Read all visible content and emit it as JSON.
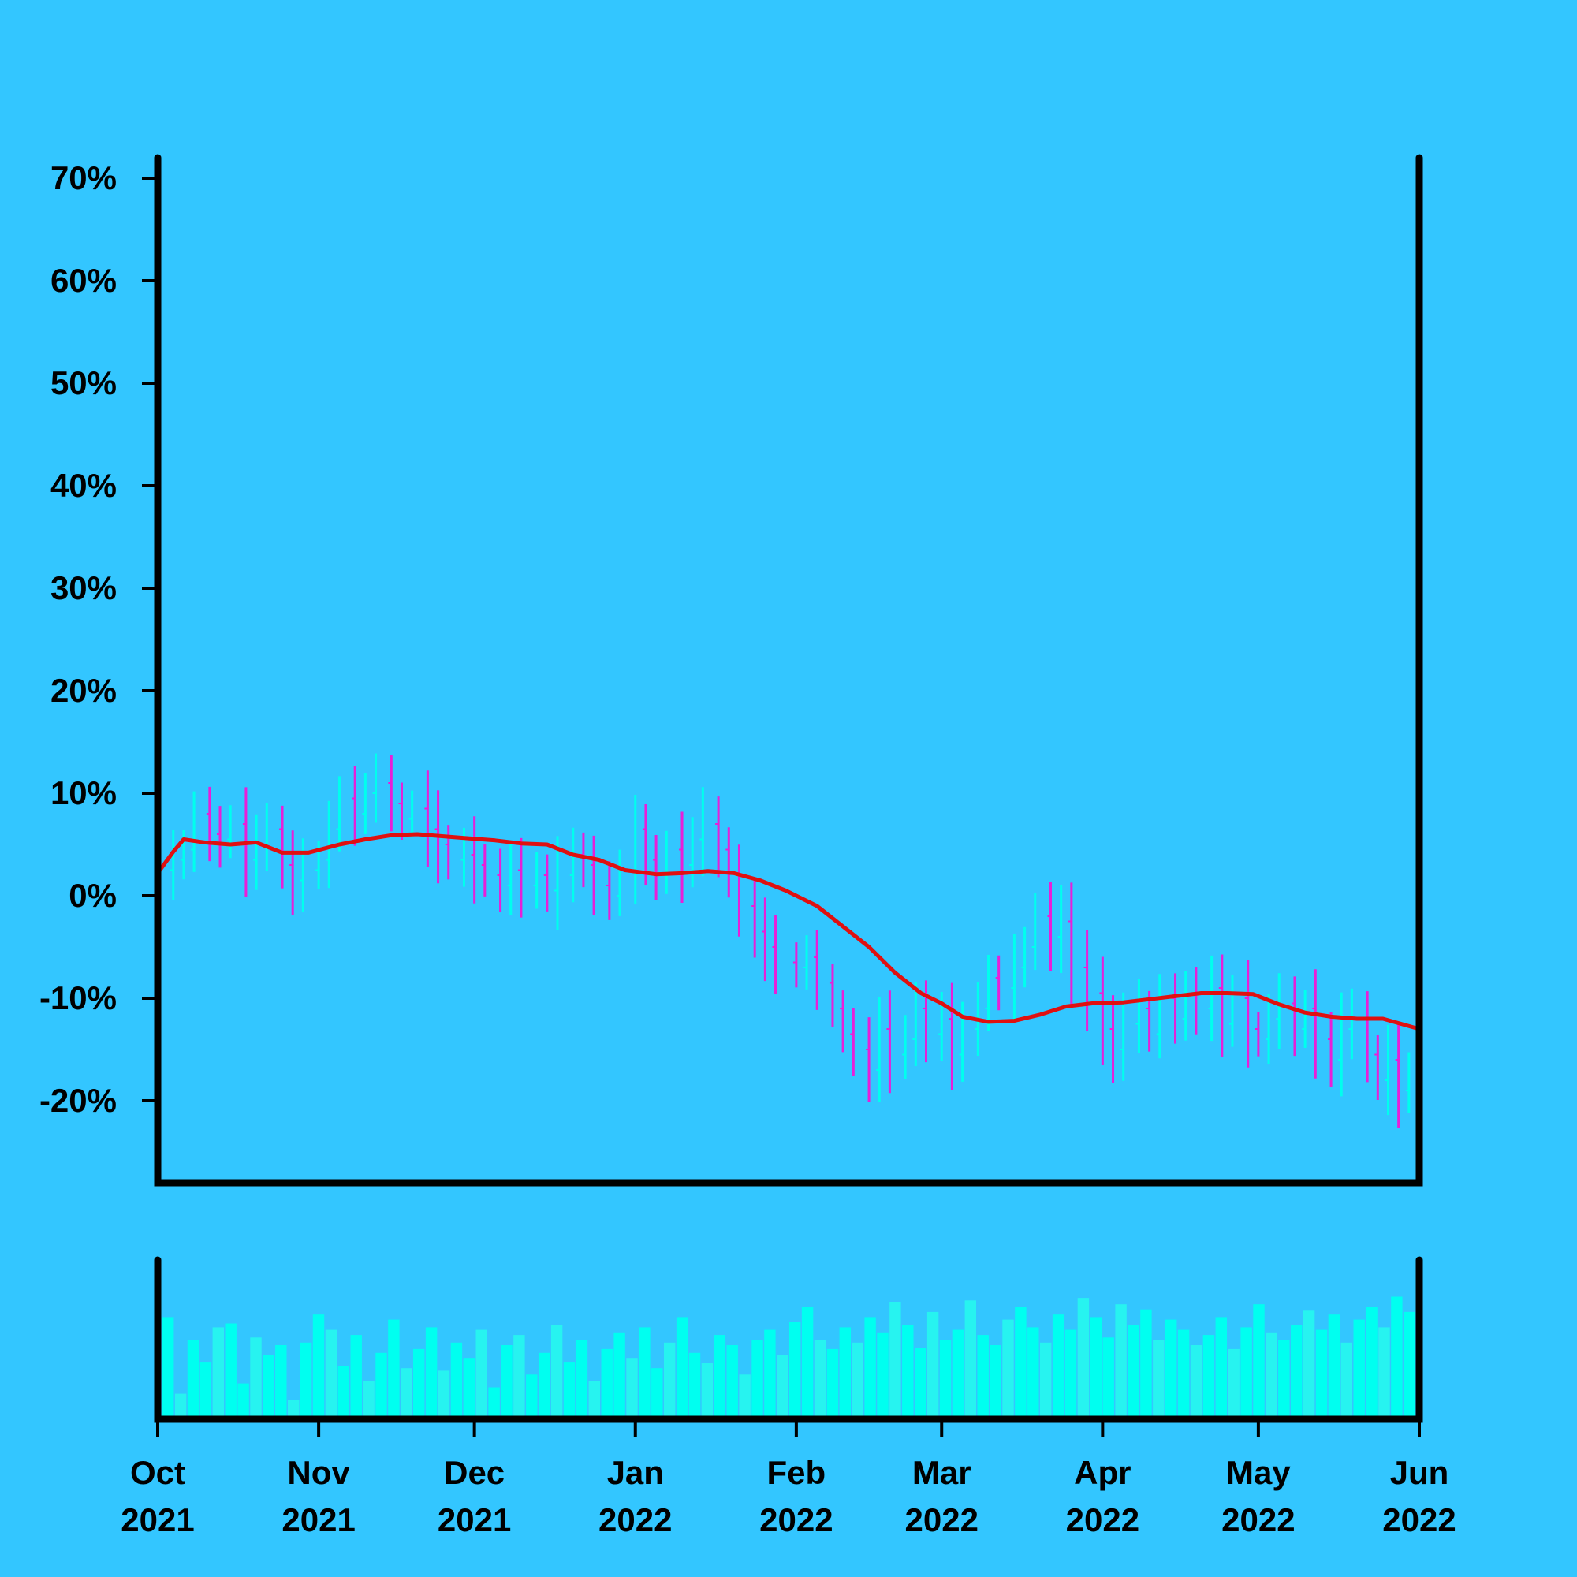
{
  "colors": {
    "background": "#33c6ff",
    "axis": "#000000",
    "up_bar": "#00ffee",
    "down_bar": "#e91ed8",
    "moving_average": "#e01010",
    "volume_bar": "#00fff0",
    "volume_bar_light": "#27f3f0"
  },
  "chart_data": [
    {
      "type": "ohlc",
      "title": "",
      "xlabel": "",
      "ylabel": "",
      "ylim": [
        -28,
        72
      ],
      "yticks": [
        -20,
        -10,
        0,
        10,
        20,
        30,
        40,
        50,
        60,
        70
      ],
      "ytick_labels": [
        "-20%",
        "-10%",
        "0%",
        "10%",
        "20%",
        "30%",
        "40%",
        "50%",
        "60%",
        "70%"
      ],
      "grid": false,
      "x_range": [
        "2021-10-01",
        "2022-06-01"
      ],
      "xticks": [
        {
          "date": "2021-10-01",
          "label": [
            "Oct",
            "2021"
          ]
        },
        {
          "date": "2021-11-01",
          "label": [
            "Nov",
            "2021"
          ]
        },
        {
          "date": "2021-12-01",
          "label": [
            "Dec",
            "2021"
          ]
        },
        {
          "date": "2022-01-01",
          "label": [
            "Jan",
            "2022"
          ]
        },
        {
          "date": "2022-02-01",
          "label": [
            "Feb",
            "2022"
          ]
        },
        {
          "date": "2022-03-01",
          "label": [
            "Mar",
            "2022"
          ]
        },
        {
          "date": "2022-04-01",
          "label": [
            "Apr",
            "2022"
          ]
        },
        {
          "date": "2022-05-01",
          "label": [
            "May",
            "2022"
          ]
        },
        {
          "date": "2022-06-01",
          "label": [
            "Jun",
            "2022"
          ]
        }
      ],
      "price_series": {
        "name": "",
        "points": [
          [
            "2021-10-01",
            2.5
          ],
          [
            "2021-10-04",
            3.5
          ],
          [
            "2021-10-06",
            4.5
          ],
          [
            "2021-10-08",
            8.0
          ],
          [
            "2021-10-11",
            6.0
          ],
          [
            "2021-10-13",
            5.5
          ],
          [
            "2021-10-15",
            7.0
          ],
          [
            "2021-10-18",
            3.5
          ],
          [
            "2021-10-20",
            5.0
          ],
          [
            "2021-10-22",
            6.5
          ],
          [
            "2021-10-25",
            3.0
          ],
          [
            "2021-10-27",
            1.5
          ],
          [
            "2021-10-29",
            2.5
          ],
          [
            "2021-11-01",
            3.5
          ],
          [
            "2021-11-03",
            6.5
          ],
          [
            "2021-11-05",
            9.5
          ],
          [
            "2021-11-08",
            8.0
          ],
          [
            "2021-11-10",
            10.0
          ],
          [
            "2021-11-12",
            11.0
          ],
          [
            "2021-11-15",
            9.0
          ],
          [
            "2021-11-17",
            7.5
          ],
          [
            "2021-11-19",
            8.5
          ],
          [
            "2021-11-22",
            6.5
          ],
          [
            "2021-11-24",
            5.0
          ],
          [
            "2021-11-26",
            3.5
          ],
          [
            "2021-11-29",
            4.0
          ],
          [
            "2021-12-01",
            3.0
          ],
          [
            "2021-12-03",
            2.0
          ],
          [
            "2021-12-06",
            1.0
          ],
          [
            "2021-12-08",
            2.5
          ],
          [
            "2021-12-10",
            1.0
          ],
          [
            "2021-12-13",
            2.0
          ],
          [
            "2021-12-15",
            0.5
          ],
          [
            "2021-12-17",
            2.0
          ],
          [
            "2021-12-20",
            4.0
          ],
          [
            "2021-12-22",
            3.0
          ],
          [
            "2021-12-24",
            1.0
          ],
          [
            "2021-12-27",
            0.0
          ],
          [
            "2021-12-29",
            2.5
          ],
          [
            "2022-01-01",
            6.5
          ],
          [
            "2022-01-03",
            3.5
          ],
          [
            "2022-01-05",
            2.0
          ],
          [
            "2022-01-07",
            4.5
          ],
          [
            "2022-01-10",
            3.0
          ],
          [
            "2022-01-12",
            5.5
          ],
          [
            "2022-01-14",
            7.0
          ],
          [
            "2022-01-17",
            4.5
          ],
          [
            "2022-01-19",
            2.0
          ],
          [
            "2022-01-21",
            -1.0
          ],
          [
            "2022-01-24",
            -3.5
          ],
          [
            "2022-01-26",
            -5.0
          ],
          [
            "2022-01-28",
            -6.5
          ],
          [
            "2022-02-01",
            -7.0
          ],
          [
            "2022-02-03",
            -6.0
          ],
          [
            "2022-02-05",
            -8.5
          ],
          [
            "2022-02-08",
            -11.0
          ],
          [
            "2022-02-10",
            -13.5
          ],
          [
            "2022-02-12",
            -15.0
          ],
          [
            "2022-02-15",
            -17.0
          ],
          [
            "2022-02-17",
            -13.0
          ],
          [
            "2022-02-19",
            -15.5
          ],
          [
            "2022-02-22",
            -14.0
          ],
          [
            "2022-02-24",
            -11.0
          ],
          [
            "2022-02-26",
            -13.5
          ],
          [
            "2022-03-01",
            -12.0
          ],
          [
            "2022-03-03",
            -15.5
          ],
          [
            "2022-03-05",
            -13.0
          ],
          [
            "2022-03-08",
            -11.0
          ],
          [
            "2022-03-10",
            -8.0
          ],
          [
            "2022-03-12",
            -9.0
          ],
          [
            "2022-03-15",
            -7.0
          ],
          [
            "2022-03-17",
            -5.0
          ],
          [
            "2022-03-19",
            -2.0
          ],
          [
            "2022-03-22",
            -4.0
          ],
          [
            "2022-03-24",
            -2.5
          ],
          [
            "2022-03-26",
            -7.0
          ],
          [
            "2022-03-29",
            -9.5
          ],
          [
            "2022-04-01",
            -13.0
          ],
          [
            "2022-04-03",
            -15.0
          ],
          [
            "2022-04-05",
            -12.5
          ],
          [
            "2022-04-08",
            -11.0
          ],
          [
            "2022-04-10",
            -13.5
          ],
          [
            "2022-04-12",
            -10.0
          ],
          [
            "2022-04-15",
            -12.0
          ],
          [
            "2022-04-17",
            -9.5
          ],
          [
            "2022-04-19",
            -11.0
          ],
          [
            "2022-04-22",
            -9.0
          ],
          [
            "2022-04-24",
            -12.5
          ],
          [
            "2022-04-26",
            -10.0
          ],
          [
            "2022-04-29",
            -13.0
          ],
          [
            "2022-05-01",
            -14.0
          ],
          [
            "2022-05-03",
            -12.0
          ],
          [
            "2022-05-05",
            -10.5
          ],
          [
            "2022-05-08",
            -13.0
          ],
          [
            "2022-05-10",
            -11.0
          ],
          [
            "2022-05-12",
            -14.0
          ],
          [
            "2022-05-15",
            -16.0
          ],
          [
            "2022-05-17",
            -13.0
          ],
          [
            "2022-05-19",
            -12.0
          ],
          [
            "2022-05-22",
            -15.5
          ],
          [
            "2022-05-24",
            -18.0
          ],
          [
            "2022-05-26",
            -16.0
          ],
          [
            "2022-05-28",
            -19.0
          ],
          [
            "2022-05-30",
            -17.5
          ],
          [
            "2022-06-01",
            -16.0
          ]
        ]
      },
      "moving_average": {
        "name": "",
        "points": [
          [
            "2021-10-01",
            2.2
          ],
          [
            "2021-10-04",
            4.3
          ],
          [
            "2021-10-06",
            5.5
          ],
          [
            "2021-10-10",
            5.2
          ],
          [
            "2021-10-15",
            5.0
          ],
          [
            "2021-10-20",
            5.2
          ],
          [
            "2021-10-25",
            4.2
          ],
          [
            "2021-10-30",
            4.2
          ],
          [
            "2021-11-05",
            5.0
          ],
          [
            "2021-11-10",
            5.5
          ],
          [
            "2021-11-15",
            5.9
          ],
          [
            "2021-11-20",
            6.0
          ],
          [
            "2021-11-25",
            5.8
          ],
          [
            "2021-11-30",
            5.6
          ],
          [
            "2021-12-05",
            5.4
          ],
          [
            "2021-12-10",
            5.1
          ],
          [
            "2021-12-15",
            5.0
          ],
          [
            "2021-12-20",
            4.0
          ],
          [
            "2021-12-25",
            3.5
          ],
          [
            "2021-12-30",
            2.5
          ],
          [
            "2022-01-05",
            2.1
          ],
          [
            "2022-01-10",
            2.2
          ],
          [
            "2022-01-15",
            2.4
          ],
          [
            "2022-01-20",
            2.2
          ],
          [
            "2022-01-25",
            1.5
          ],
          [
            "2022-01-30",
            0.5
          ],
          [
            "2022-02-05",
            -1.0
          ],
          [
            "2022-02-10",
            -3.0
          ],
          [
            "2022-02-15",
            -5.0
          ],
          [
            "2022-02-20",
            -7.5
          ],
          [
            "2022-02-25",
            -9.5
          ],
          [
            "2022-03-01",
            -10.5
          ],
          [
            "2022-03-05",
            -11.8
          ],
          [
            "2022-03-10",
            -12.3
          ],
          [
            "2022-03-15",
            -12.2
          ],
          [
            "2022-03-20",
            -11.6
          ],
          [
            "2022-03-25",
            -10.8
          ],
          [
            "2022-03-30",
            -10.5
          ],
          [
            "2022-04-05",
            -10.4
          ],
          [
            "2022-04-10",
            -10.1
          ],
          [
            "2022-04-15",
            -9.8
          ],
          [
            "2022-04-20",
            -9.5
          ],
          [
            "2022-04-25",
            -9.5
          ],
          [
            "2022-04-30",
            -9.6
          ],
          [
            "2022-05-05",
            -10.6
          ],
          [
            "2022-05-10",
            -11.4
          ],
          [
            "2022-05-15",
            -11.8
          ],
          [
            "2022-05-20",
            -12.0
          ],
          [
            "2022-05-25",
            -12.0
          ],
          [
            "2022-06-01",
            -13.0
          ]
        ]
      }
    },
    {
      "type": "bar",
      "title": "",
      "xlabel": "",
      "ylabel": "",
      "grid": false,
      "x_range": [
        "2021-10-01",
        "2022-06-01"
      ],
      "ylim": [
        0,
        1
      ],
      "values": [
        0.8,
        0.2,
        0.62,
        0.45,
        0.72,
        0.75,
        0.28,
        0.64,
        0.5,
        0.58,
        0.15,
        0.6,
        0.82,
        0.7,
        0.42,
        0.66,
        0.3,
        0.52,
        0.78,
        0.4,
        0.55,
        0.72,
        0.38,
        0.6,
        0.48,
        0.7,
        0.25,
        0.58,
        0.66,
        0.35,
        0.52,
        0.74,
        0.45,
        0.62,
        0.3,
        0.55,
        0.68,
        0.48,
        0.72,
        0.4,
        0.6,
        0.8,
        0.52,
        0.44,
        0.66,
        0.58,
        0.35,
        0.62,
        0.7,
        0.5,
        0.76,
        0.88,
        0.62,
        0.55,
        0.72,
        0.6,
        0.8,
        0.68,
        0.92,
        0.74,
        0.56,
        0.84,
        0.62,
        0.7,
        0.93,
        0.66,
        0.58,
        0.78,
        0.88,
        0.72,
        0.6,
        0.82,
        0.7,
        0.95,
        0.8,
        0.64,
        0.9,
        0.74,
        0.86,
        0.62,
        0.78,
        0.7,
        0.58,
        0.66,
        0.8,
        0.55,
        0.72,
        0.9,
        0.68,
        0.62,
        0.74,
        0.85,
        0.7,
        0.82,
        0.6,
        0.78,
        0.88,
        0.72,
        0.96,
        0.84
      ]
    }
  ]
}
